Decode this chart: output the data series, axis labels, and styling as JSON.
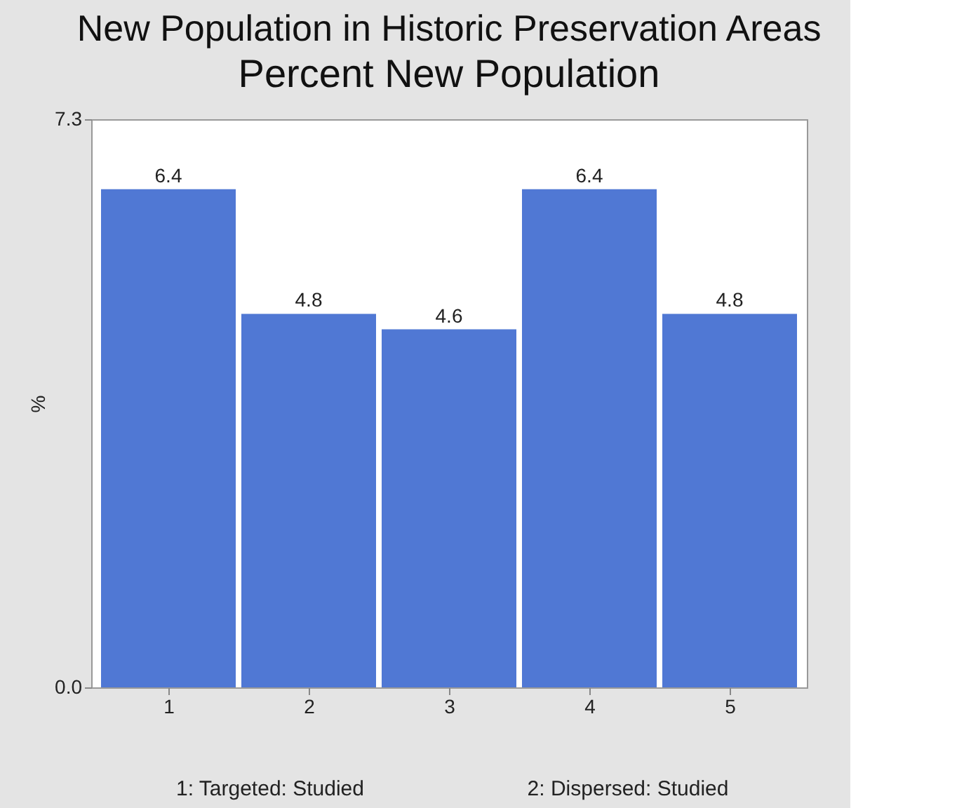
{
  "chart_data": {
    "type": "bar",
    "title": "New Population in Historic Preservation Areas",
    "subtitle": "Percent New Population",
    "ylabel": "%",
    "categories": [
      "1",
      "2",
      "3",
      "4",
      "5"
    ],
    "values": [
      6.4,
      4.8,
      4.6,
      6.4,
      4.8
    ],
    "color": "#5078d4",
    "ylim": [
      0,
      7.3
    ],
    "yticks": [
      {
        "value": 0,
        "label": "0.0"
      },
      7.3
    ],
    "data_labels": true,
    "grid": false,
    "annotations": [
      "1: Targeted: Studied",
      "2: Dispersed: Studied"
    ]
  }
}
